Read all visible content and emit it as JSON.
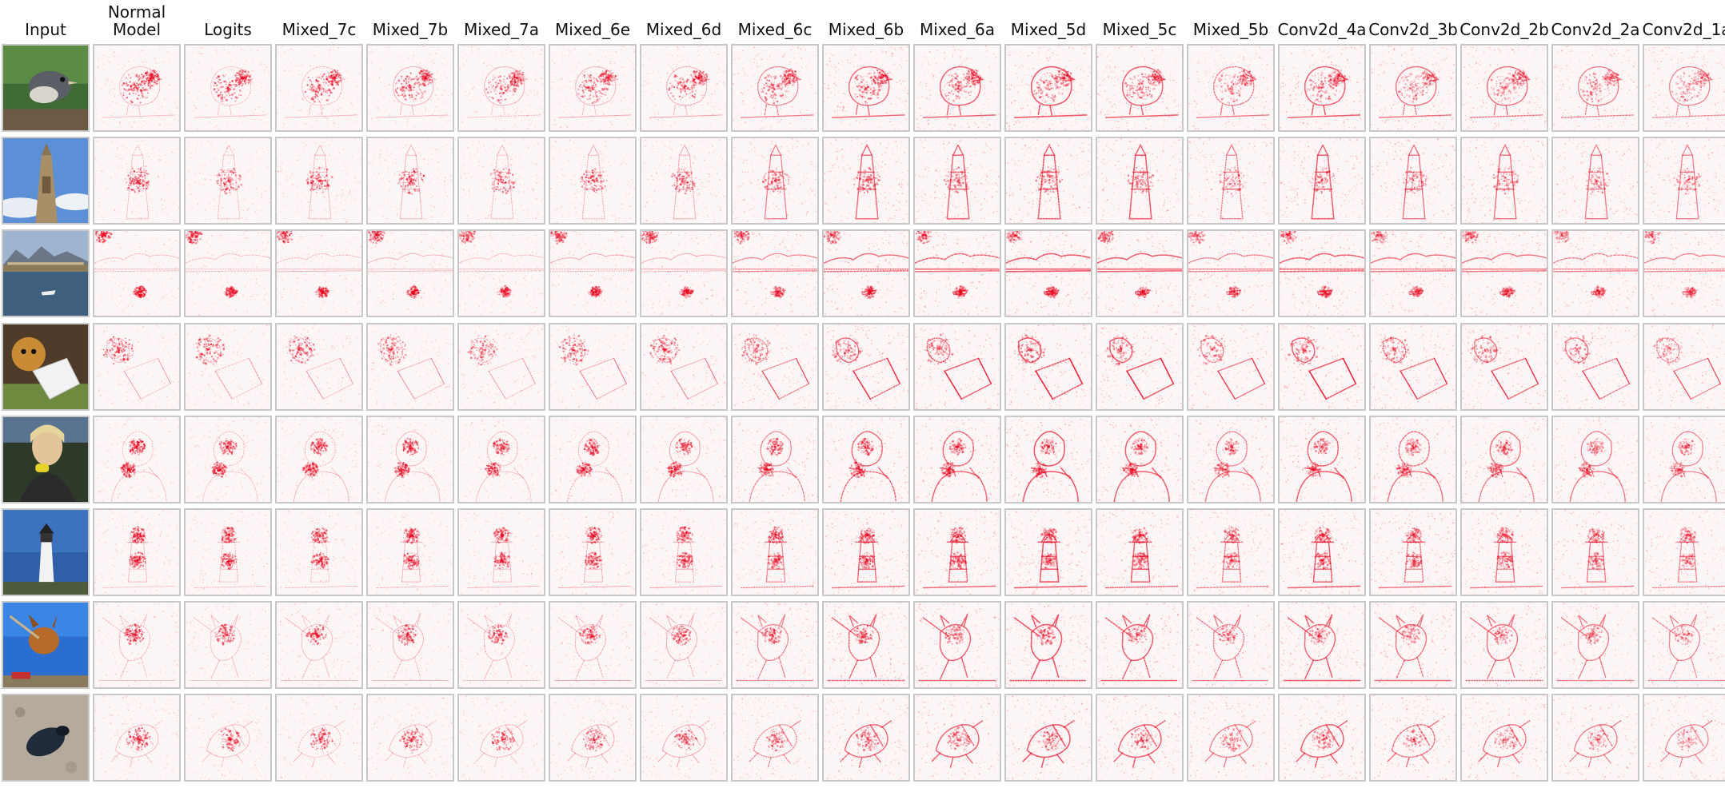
{
  "figure": {
    "columns": [
      {
        "label": "Input",
        "kind": "input"
      },
      {
        "label": "Normal\nModel",
        "strength": 0.55,
        "edge": 0.25
      },
      {
        "label": "Logits",
        "strength": 0.5,
        "edge": 0.25
      },
      {
        "label": "Mixed_7c",
        "strength": 0.5,
        "edge": 0.26
      },
      {
        "label": "Mixed_7b",
        "strength": 0.5,
        "edge": 0.27
      },
      {
        "label": "Mixed_7a",
        "strength": 0.48,
        "edge": 0.28
      },
      {
        "label": "Mixed_6e",
        "strength": 0.48,
        "edge": 0.32
      },
      {
        "label": "Mixed_6d",
        "strength": 0.47,
        "edge": 0.36
      },
      {
        "label": "Mixed_6c",
        "strength": 0.45,
        "edge": 0.55
      },
      {
        "label": "Mixed_6b",
        "strength": 0.45,
        "edge": 0.7
      },
      {
        "label": "Mixed_6a",
        "strength": 0.44,
        "edge": 0.72
      },
      {
        "label": "Mixed_5d",
        "strength": 0.42,
        "edge": 0.8
      },
      {
        "label": "Mixed_5c",
        "strength": 0.42,
        "edge": 0.75
      },
      {
        "label": "Mixed_5b",
        "strength": 0.38,
        "edge": 0.6
      },
      {
        "label": "Conv2d_4a",
        "strength": 0.4,
        "edge": 0.75
      },
      {
        "label": "Conv2d_3b",
        "strength": 0.38,
        "edge": 0.65
      },
      {
        "label": "Conv2d_2b",
        "strength": 0.38,
        "edge": 0.65
      },
      {
        "label": "Conv2d_2a",
        "strength": 0.36,
        "edge": 0.6
      },
      {
        "label": "Conv2d_1a",
        "strength": 0.34,
        "edge": 0.55
      }
    ],
    "rows": [
      {
        "subject": "bird",
        "scene": "bird"
      },
      {
        "subject": "obelisk",
        "scene": "tower"
      },
      {
        "subject": "harbor",
        "scene": "harbor"
      },
      {
        "subject": "dog-with-bucket",
        "scene": "dogbucket"
      },
      {
        "subject": "woman-eating-corn",
        "scene": "woman"
      },
      {
        "subject": "lighthouse",
        "scene": "lighthouse"
      },
      {
        "subject": "jumping-dog",
        "scene": "jumpdog"
      },
      {
        "subject": "beetle",
        "scene": "beetle"
      }
    ],
    "heat_color": "#e8001a",
    "border_color": "#c8c8c8"
  }
}
